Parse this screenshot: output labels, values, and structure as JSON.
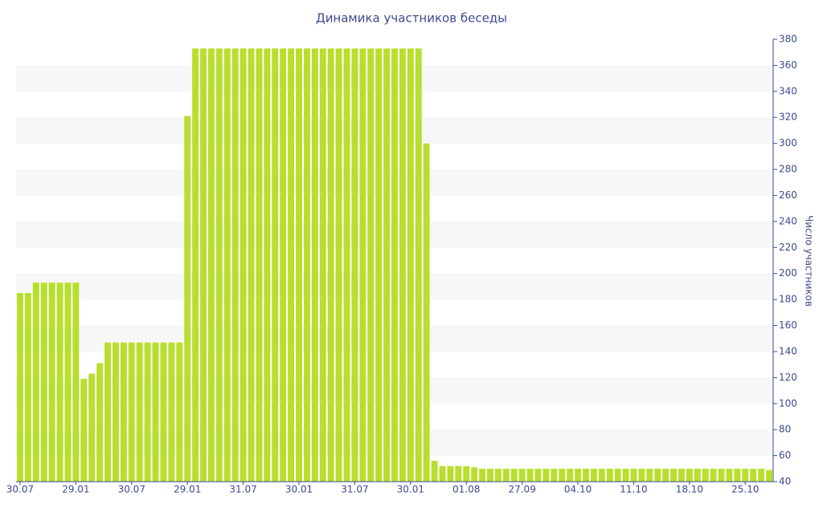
{
  "chart_data": {
    "type": "bar",
    "title": "Динамика участников беседы",
    "y_label": "Число участников",
    "categories": [
      "30.07",
      null,
      null,
      null,
      null,
      null,
      null,
      "29.01",
      null,
      null,
      null,
      null,
      null,
      null,
      "30.07",
      null,
      null,
      null,
      null,
      null,
      null,
      "29.01",
      null,
      null,
      null,
      null,
      null,
      null,
      "31.07",
      null,
      null,
      null,
      null,
      null,
      null,
      "30.01",
      null,
      null,
      null,
      null,
      null,
      null,
      "31.07",
      null,
      null,
      null,
      null,
      null,
      null,
      "30.01",
      null,
      null,
      null,
      null,
      null,
      null,
      "01.08",
      null,
      null,
      null,
      null,
      null,
      null,
      "27.09",
      null,
      null,
      null,
      null,
      null,
      null,
      "04.10",
      null,
      null,
      null,
      null,
      null,
      null,
      "11.10",
      null,
      null,
      null,
      null,
      null,
      null,
      "18.10",
      null,
      null,
      null,
      null,
      null,
      null,
      "25.10",
      null,
      null,
      null
    ],
    "values": [
      185,
      185,
      193,
      193,
      193,
      193,
      193,
      193,
      119,
      123,
      131,
      147,
      147,
      147,
      147,
      147,
      147,
      147,
      147,
      147,
      147,
      321,
      373,
      373,
      373,
      373,
      373,
      373,
      373,
      373,
      373,
      373,
      373,
      373,
      373,
      373,
      373,
      373,
      373,
      373,
      373,
      373,
      373,
      373,
      373,
      373,
      373,
      373,
      373,
      373,
      373,
      300,
      56,
      52,
      52,
      52,
      52,
      51,
      50,
      50,
      50,
      50,
      50,
      50,
      50,
      50,
      50,
      50,
      50,
      50,
      50,
      50,
      50,
      50,
      50,
      50,
      50,
      50,
      50,
      50,
      50,
      50,
      50,
      50,
      50,
      50,
      50,
      50,
      50,
      50,
      50,
      50,
      50,
      50,
      49
    ],
    "color": "#b8df2e",
    "ylim": [
      40,
      380
    ],
    "yticks": [
      40,
      60,
      80,
      100,
      120,
      140,
      160,
      180,
      200,
      220,
      240,
      260,
      280,
      300,
      320,
      340,
      360,
      380
    ],
    "y_axis_side": "right",
    "grid": "bands"
  }
}
